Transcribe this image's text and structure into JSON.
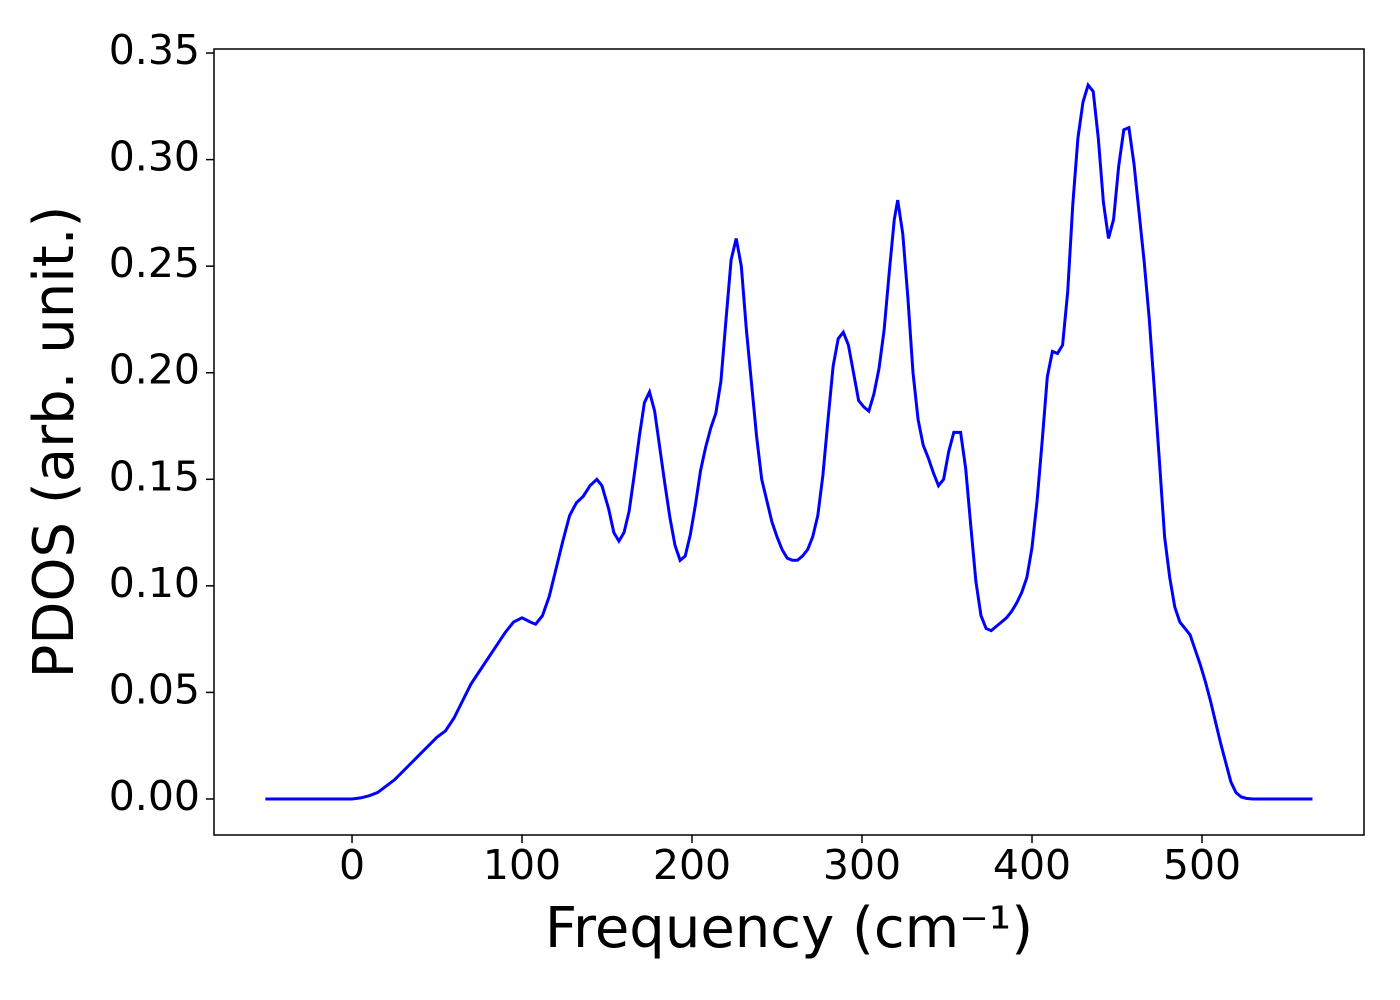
{
  "chart_data": {
    "type": "line",
    "xlabel": "Frequency (cm⁻¹)",
    "ylabel": "PDOS (arb. unit.)",
    "x": [
      -51,
      -40,
      -20,
      0,
      5,
      10,
      15,
      20,
      25,
      30,
      35,
      40,
      45,
      50,
      55,
      60,
      65,
      70,
      75,
      80,
      85,
      90,
      95,
      100,
      105,
      108,
      112,
      116,
      120,
      124,
      128,
      132,
      136,
      140,
      144,
      147,
      151,
      154,
      157,
      160,
      163,
      166,
      169,
      172,
      175,
      178,
      181,
      184,
      187,
      190,
      193,
      196,
      199,
      202,
      205,
      208,
      211,
      214,
      217,
      220,
      223,
      226,
      229,
      232,
      235,
      238,
      241,
      244,
      247,
      250,
      253,
      256,
      259,
      262,
      265,
      268,
      271,
      274,
      277,
      280,
      283,
      286,
      289,
      292,
      295,
      298,
      301,
      304,
      307,
      310,
      313,
      316,
      319,
      321,
      324,
      327,
      330,
      333,
      336,
      339,
      342,
      345,
      348,
      351,
      354,
      358,
      361,
      364,
      367,
      370,
      373,
      376,
      379,
      382,
      385,
      388,
      391,
      394,
      397,
      400,
      403,
      406,
      409,
      412,
      415,
      418,
      421,
      424,
      427,
      430,
      433,
      436,
      439,
      442,
      445,
      448,
      451,
      454,
      457,
      460,
      463,
      466,
      469,
      472,
      475,
      478,
      481,
      484,
      487,
      490,
      493,
      496,
      499,
      502,
      505,
      508,
      511,
      514,
      517,
      520,
      523,
      526,
      530,
      545,
      565
    ],
    "series": [
      {
        "name": "PDOS",
        "color": "#0000ff",
        "values": [
          0,
          0,
          0,
          0,
          0.0005,
          0.0015,
          0.003,
          0.006,
          0.009,
          0.013,
          0.017,
          0.021,
          0.025,
          0.029,
          0.032,
          0.038,
          0.046,
          0.054,
          0.06,
          0.066,
          0.072,
          0.078,
          0.083,
          0.085,
          0.083,
          0.082,
          0.086,
          0.095,
          0.108,
          0.121,
          0.133,
          0.139,
          0.142,
          0.147,
          0.15,
          0.147,
          0.136,
          0.125,
          0.121,
          0.125,
          0.135,
          0.152,
          0.17,
          0.186,
          0.191,
          0.182,
          0.165,
          0.148,
          0.132,
          0.119,
          0.112,
          0.114,
          0.124,
          0.138,
          0.154,
          0.165,
          0.174,
          0.181,
          0.196,
          0.225,
          0.253,
          0.263,
          0.25,
          0.22,
          0.195,
          0.17,
          0.15,
          0.14,
          0.13,
          0.123,
          0.117,
          0.113,
          0.112,
          0.112,
          0.114,
          0.117,
          0.123,
          0.133,
          0.152,
          0.178,
          0.203,
          0.216,
          0.219,
          0.213,
          0.2,
          0.187,
          0.184,
          0.182,
          0.19,
          0.202,
          0.22,
          0.247,
          0.272,
          0.281,
          0.265,
          0.235,
          0.2,
          0.178,
          0.166,
          0.16,
          0.153,
          0.147,
          0.15,
          0.163,
          0.172,
          0.172,
          0.155,
          0.128,
          0.102,
          0.086,
          0.08,
          0.079,
          0.081,
          0.083,
          0.085,
          0.088,
          0.092,
          0.097,
          0.104,
          0.118,
          0.14,
          0.168,
          0.198,
          0.21,
          0.209,
          0.213,
          0.238,
          0.279,
          0.31,
          0.327,
          0.335,
          0.332,
          0.31,
          0.28,
          0.263,
          0.272,
          0.297,
          0.314,
          0.315,
          0.298,
          0.275,
          0.252,
          0.225,
          0.192,
          0.158,
          0.123,
          0.104,
          0.09,
          0.083,
          0.08,
          0.077,
          0.07,
          0.063,
          0.055,
          0.046,
          0.036,
          0.026,
          0.017,
          0.008,
          0.003,
          0.001,
          0.0003,
          0,
          0,
          0
        ]
      }
    ],
    "xlim": [
      -81.2,
      595.3
    ],
    "ylim": [
      -0.0169,
      0.3519
    ],
    "xticks": [
      0,
      100,
      200,
      300,
      400,
      500
    ],
    "yticks": [
      {
        "value": 0,
        "label": "0.00"
      },
      {
        "value": 0.05,
        "label": "0.05"
      },
      {
        "value": 0.1,
        "label": "0.10"
      },
      {
        "value": 0.15,
        "label": "0.15"
      },
      {
        "value": 0.2,
        "label": "0.20"
      },
      {
        "value": 0.25,
        "label": "0.25"
      },
      {
        "value": 0.3,
        "label": "0.30"
      },
      {
        "value": 0.35,
        "label": "0.35"
      }
    ],
    "grid": false
  }
}
